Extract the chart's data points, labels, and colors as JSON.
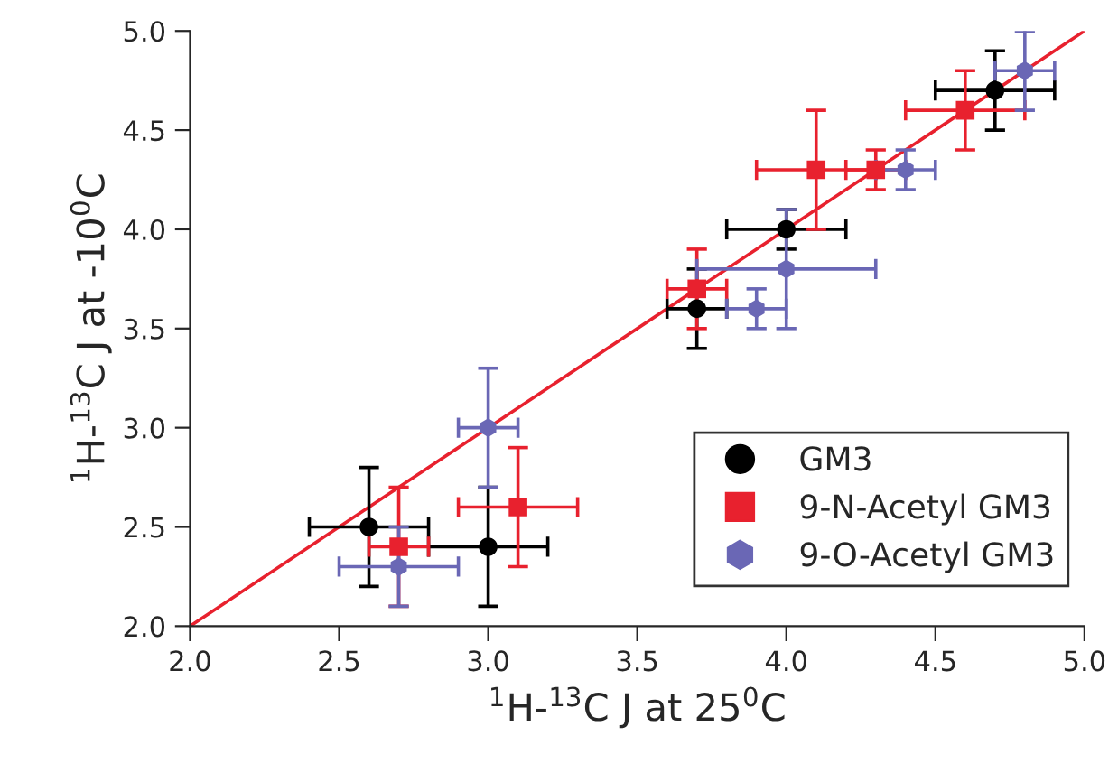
{
  "chart_data": {
    "type": "scatter",
    "xlabel": "$^{1}$H-$^{13}$C J at 25$^{0}$C",
    "ylabel": "$^{1}$H-$^{13}$C J at -10$^{0}$C",
    "xlim": [
      2.0,
      5.0
    ],
    "ylim": [
      2.0,
      5.0
    ],
    "xticks": [
      {
        "value": 2.0,
        "label": "2.0"
      },
      {
        "value": 2.5,
        "label": "2.5"
      },
      {
        "value": 3.0,
        "label": "3.0"
      },
      {
        "value": 3.5,
        "label": "3.5"
      },
      {
        "value": 4.0,
        "label": "4.0"
      },
      {
        "value": 4.5,
        "label": "4.5"
      },
      {
        "value": 5.0,
        "label": "5.0"
      }
    ],
    "yticks": [
      {
        "value": 2.0,
        "label": "2.0"
      },
      {
        "value": 2.5,
        "label": "2.5"
      },
      {
        "value": 3.0,
        "label": "3.0"
      },
      {
        "value": 3.5,
        "label": "3.5"
      },
      {
        "value": 4.0,
        "label": "4.0"
      },
      {
        "value": 4.5,
        "label": "4.5"
      },
      {
        "value": 5.0,
        "label": "5.0"
      }
    ],
    "grid": false,
    "legend": "bottom right",
    "series": [
      {
        "type": "line",
        "color": "#e8212e",
        "x": [
          2.0,
          5.0
        ],
        "values": [
          2.0,
          5.0
        ],
        "marker": "none",
        "line_style": "solid"
      },
      {
        "name": "GM3",
        "color": "#000000",
        "marker": "circle",
        "x": [
          2.6,
          3.0,
          3.7,
          4.0,
          4.7
        ],
        "values": [
          2.5,
          2.4,
          3.6,
          4.0,
          4.7
        ],
        "xerrors": [
          0.2,
          0.2,
          0.1,
          0.2,
          0.2
        ],
        "errors": [
          0.3,
          0.3,
          0.2,
          0.1,
          0.2
        ]
      },
      {
        "name": "9-N-Acetyl GM3",
        "color": "#e8212e",
        "marker": "square",
        "x": [
          2.7,
          3.1,
          3.7,
          4.1,
          4.3,
          4.6
        ],
        "values": [
          2.4,
          2.6,
          3.7,
          4.3,
          4.3,
          4.6
        ],
        "xerrors": [
          0.1,
          0.2,
          0.1,
          0.2,
          0.1,
          0.2
        ],
        "errors": [
          0.3,
          0.3,
          0.2,
          0.3,
          0.1,
          0.2
        ]
      },
      {
        "name": "9-O-Acetyl GM3",
        "color": "#6a67b5",
        "x": [
          2.7,
          3.0,
          3.9,
          4.0,
          4.4,
          4.8
        ],
        "values": [
          2.3,
          3.0,
          3.6,
          3.8,
          4.3,
          4.8
        ],
        "xerrors": [
          0.2,
          0.1,
          0.1,
          0.3,
          0.1,
          0.1
        ],
        "errors": [
          0.2,
          0.3,
          0.1,
          0.3,
          0.1,
          0.2
        ]
      }
    ]
  }
}
